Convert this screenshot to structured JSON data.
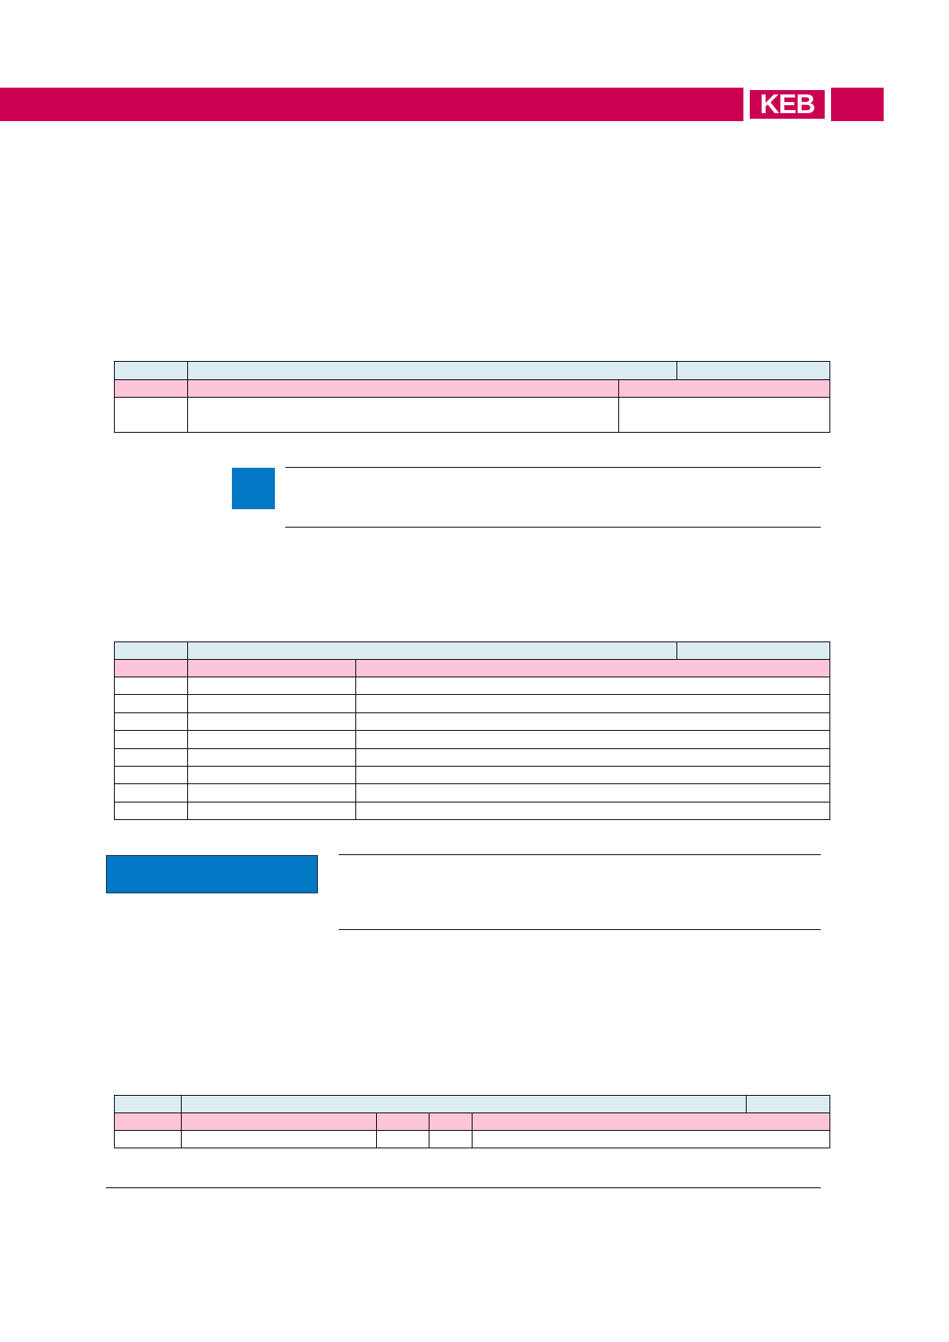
{
  "header": {
    "logo_text": "KEB",
    "brand_color": "#cc0050"
  },
  "colors": {
    "table_title_row": "#dcedf2",
    "table_header_row": "#fcc5da",
    "note_marker": "#0078c4"
  }
}
